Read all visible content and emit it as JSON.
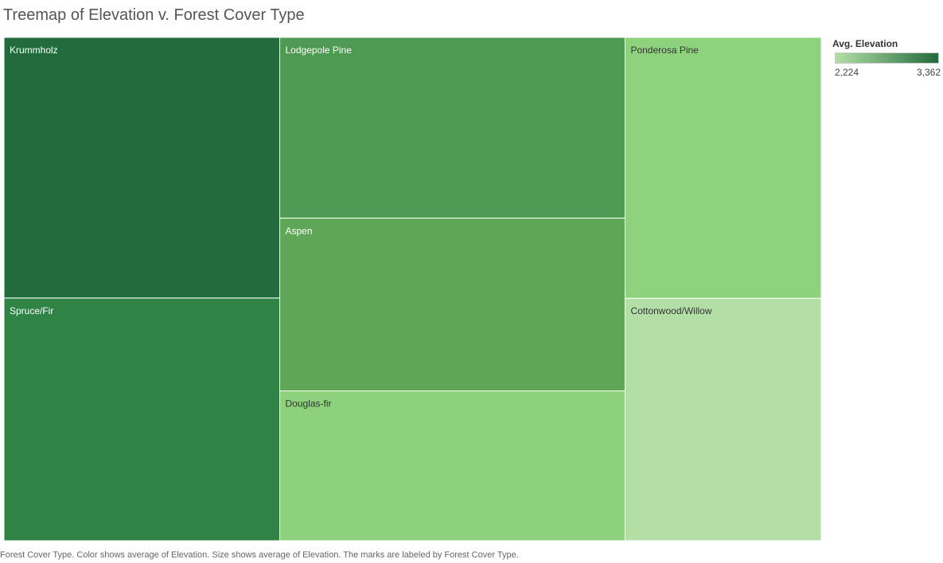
{
  "title": "Treemap of Elevation v. Forest Cover Type",
  "caption": "Forest Cover Type.  Color shows average of Elevation.  Size shows average of Elevation.  The marks are labeled by Forest Cover Type.",
  "legend": {
    "title": "Avg. Elevation",
    "min_label": "2,224",
    "max_label": "3,362",
    "color_low": "#b3dfa7",
    "color_high": "#226b3d"
  },
  "chart_data": {
    "type": "treemap",
    "title": "Treemap of Elevation v. Forest Cover Type",
    "size_measure": "Avg. Elevation",
    "color_measure": "Avg. Elevation",
    "color_range": [
      2224,
      3362
    ],
    "columns": [
      [
        "Krummholz",
        "Spruce/Fir"
      ],
      [
        "Lodgepole Pine",
        "Aspen",
        "Douglas-fir"
      ],
      [
        "Ponderosa Pine",
        "Cottonwood/Willow"
      ]
    ],
    "items": [
      {
        "label": "Krummholz",
        "value": 3362,
        "color": "#226b3d",
        "text_color": "#ffffff"
      },
      {
        "label": "Spruce/Fir",
        "value": 3130,
        "color": "#2f8345",
        "text_color": "#ffffff"
      },
      {
        "label": "Lodgepole Pine",
        "value": 2920,
        "color": "#4f9a53",
        "text_color": "#ffffff"
      },
      {
        "label": "Aspen",
        "value": 2790,
        "color": "#5fa756",
        "text_color": "#ffffff"
      },
      {
        "label": "Douglas-fir",
        "value": 2420,
        "color": "#8ed17c",
        "text_color": "#333333"
      },
      {
        "label": "Ponderosa Pine",
        "value": 2395,
        "color": "#8fd27d",
        "text_color": "#333333"
      },
      {
        "label": "Cottonwood/Willow",
        "value": 2224,
        "color": "#b3dfa7",
        "text_color": "#333333"
      }
    ]
  }
}
